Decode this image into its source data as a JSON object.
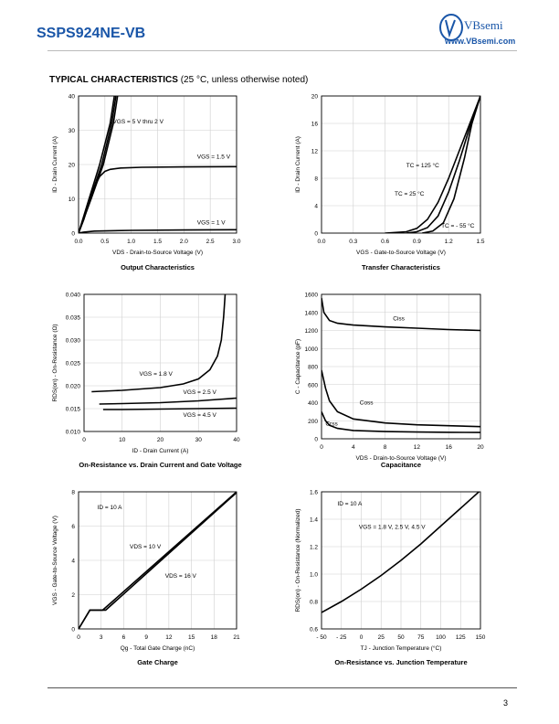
{
  "header": {
    "part_number": "SSPS924NE-VB",
    "brand": "VBsemi",
    "website": "www.VBsemi.com"
  },
  "section": {
    "title": "TYPICAL CHARACTERISTICS",
    "condition": "(25 °C, unless otherwise noted)"
  },
  "page_number": "3",
  "chart_data": [
    {
      "type": "line",
      "caption": "Output Characteristics",
      "xlabel": "VDS - Drain-to-Source Voltage (V)",
      "ylabel": "ID - Drain Current (A)",
      "xlim": [
        0,
        3
      ],
      "ylim": [
        0,
        40
      ],
      "xticks": [
        0,
        0.5,
        1,
        1.5,
        2,
        2.5,
        3
      ],
      "yticks": [
        0,
        10,
        20,
        30,
        40
      ],
      "xtick_labels": [
        "0.0",
        "0.5",
        "1.0",
        "1.5",
        "2.0",
        "2.5",
        "3.0"
      ],
      "ytick_labels": [
        "0",
        "10",
        "20",
        "30",
        "40"
      ],
      "series": [
        {
          "name": "VGS = 5 V thru 2 V",
          "points": [
            [
              0,
              0
            ],
            [
              0.2,
              10
            ],
            [
              0.4,
              20
            ],
            [
              0.6,
              32
            ],
            [
              0.68,
              40
            ]
          ]
        },
        {
          "name": "",
          "points": [
            [
              0,
              0
            ],
            [
              0.22,
              10
            ],
            [
              0.44,
              20
            ],
            [
              0.63,
              32
            ],
            [
              0.71,
              40
            ]
          ]
        },
        {
          "name": "",
          "points": [
            [
              0,
              0
            ],
            [
              0.24,
              10
            ],
            [
              0.47,
              20
            ],
            [
              0.66,
              32
            ],
            [
              0.74,
              40
            ]
          ]
        },
        {
          "name": "VGS = 1.5 V",
          "points": [
            [
              0,
              0
            ],
            [
              0.1,
              4
            ],
            [
              0.2,
              9
            ],
            [
              0.3,
              13.5
            ],
            [
              0.4,
              16.5
            ],
            [
              0.5,
              18
            ],
            [
              0.6,
              18.6
            ],
            [
              0.8,
              19
            ],
            [
              1.2,
              19.2
            ],
            [
              2,
              19.3
            ],
            [
              3,
              19.4
            ]
          ]
        },
        {
          "name": "VGS = 1 V",
          "points": [
            [
              0,
              0
            ],
            [
              0.1,
              0.3
            ],
            [
              0.3,
              0.6
            ],
            [
              1,
              0.8
            ],
            [
              2,
              0.9
            ],
            [
              3,
              1
            ]
          ]
        }
      ],
      "annotations": [
        {
          "text": "VGS = 5 V thru 2 V",
          "x": 0.65,
          "y": 32
        },
        {
          "text": "VGS = 1.5 V",
          "x": 2.25,
          "y": 21.8
        },
        {
          "text": "VGS = 1 V",
          "x": 2.25,
          "y": 2.6
        }
      ]
    },
    {
      "type": "line",
      "caption": "Transfer Characteristics",
      "xlabel": "VGS - Gate-to-Source Voltage (V)",
      "ylabel": "ID - Drain Current (A)",
      "xlim": [
        0,
        1.5
      ],
      "ylim": [
        0,
        20
      ],
      "xticks": [
        0,
        0.3,
        0.6,
        0.9,
        1.2,
        1.5
      ],
      "yticks": [
        0,
        4,
        8,
        12,
        16,
        20
      ],
      "xtick_labels": [
        "0.0",
        "0.3",
        "0.6",
        "0.9",
        "1.2",
        "1.5"
      ],
      "ytick_labels": [
        "0",
        "4",
        "8",
        "12",
        "16",
        "20"
      ],
      "series": [
        {
          "name": "TC = 125 °C",
          "points": [
            [
              0.6,
              0
            ],
            [
              0.8,
              0.2
            ],
            [
              0.9,
              0.7
            ],
            [
              1.0,
              2
            ],
            [
              1.1,
              4.5
            ],
            [
              1.2,
              8
            ],
            [
              1.3,
              12
            ],
            [
              1.4,
              16
            ],
            [
              1.5,
              20
            ]
          ]
        },
        {
          "name": "TC = 25 °C",
          "points": [
            [
              0.8,
              0
            ],
            [
              0.9,
              0.2
            ],
            [
              1.0,
              0.8
            ],
            [
              1.1,
              2.5
            ],
            [
              1.2,
              6
            ],
            [
              1.3,
              10.5
            ],
            [
              1.4,
              15.5
            ],
            [
              1.5,
              20
            ]
          ]
        },
        {
          "name": "TC = - 55 °C",
          "points": [
            [
              0.95,
              0
            ],
            [
              1.05,
              0.3
            ],
            [
              1.15,
              1.5
            ],
            [
              1.25,
              5
            ],
            [
              1.35,
              11
            ],
            [
              1.42,
              16
            ],
            [
              1.5,
              20
            ]
          ]
        }
      ],
      "annotations": [
        {
          "text": "TC = 125 °C",
          "x": 0.8,
          "y": 9.6
        },
        {
          "text": "TC = 25 °C",
          "x": 0.69,
          "y": 5.5
        },
        {
          "text": "TC = - 55 °C",
          "x": 1.13,
          "y": 0.8
        }
      ]
    },
    {
      "type": "line",
      "caption": "On-Resistance vs. Drain Current and Gate Voltage",
      "xlabel": "ID - Drain Current (A)",
      "ylabel": "RDS(on) - On-Resistance (Ω)",
      "xlim": [
        0,
        40
      ],
      "ylim": [
        0.01,
        0.04
      ],
      "xticks": [
        0,
        10,
        20,
        30,
        40
      ],
      "yticks": [
        0.01,
        0.015,
        0.02,
        0.025,
        0.03,
        0.035,
        0.04
      ],
      "xtick_labels": [
        "0",
        "10",
        "20",
        "30",
        "40"
      ],
      "ytick_labels": [
        "0.010",
        "0.015",
        "0.020",
        "0.025",
        "0.030",
        "0.035",
        "0.040"
      ],
      "series": [
        {
          "name": "VGS = 1.8 V",
          "points": [
            [
              2,
              0.0187
            ],
            [
              10,
              0.019
            ],
            [
              20,
              0.0196
            ],
            [
              26,
              0.0204
            ],
            [
              30,
              0.0215
            ],
            [
              33,
              0.0235
            ],
            [
              35,
              0.0265
            ],
            [
              36,
              0.03
            ],
            [
              36.6,
              0.035
            ],
            [
              37,
              0.04
            ]
          ]
        },
        {
          "name": "VGS = 2.5 V",
          "points": [
            [
              4,
              0.016
            ],
            [
              10,
              0.0161
            ],
            [
              20,
              0.0163
            ],
            [
              30,
              0.0167
            ],
            [
              35,
              0.017
            ],
            [
              40,
              0.0173
            ]
          ]
        },
        {
          "name": "VGS = 4.5 V",
          "points": [
            [
              5,
              0.0148
            ],
            [
              10,
              0.0148
            ],
            [
              20,
              0.0149
            ],
            [
              30,
              0.015
            ],
            [
              40,
              0.0151
            ]
          ]
        }
      ],
      "annotations": [
        {
          "text": "VGS = 1.8 V",
          "x": 14.5,
          "y": 0.0222
        },
        {
          "text": "VGS = 2.5 V",
          "x": 26,
          "y": 0.0182
        },
        {
          "text": "VGS = 4.5 V",
          "x": 26,
          "y": 0.0132
        }
      ]
    },
    {
      "type": "line",
      "caption": "Capacitance",
      "xlabel": "VDS - Drain-to-Source Voltage (V)",
      "ylabel": "C - Capacitance (pF)",
      "xlim": [
        0,
        20
      ],
      "ylim": [
        0,
        1600
      ],
      "xticks": [
        0,
        4,
        8,
        12,
        16,
        20
      ],
      "yticks": [
        0,
        200,
        400,
        600,
        800,
        1000,
        1200,
        1400,
        1600
      ],
      "xtick_labels": [
        "0",
        "4",
        "8",
        "12",
        "16",
        "20"
      ],
      "ytick_labels": [
        "0",
        "200",
        "400",
        "600",
        "800",
        "1000",
        "1200",
        "1400",
        "1600"
      ],
      "series": [
        {
          "name": "Ciss",
          "points": [
            [
              0,
              1560
            ],
            [
              0.3,
              1400
            ],
            [
              1,
              1310
            ],
            [
              2,
              1280
            ],
            [
              4,
              1260
            ],
            [
              8,
              1240
            ],
            [
              12,
              1225
            ],
            [
              16,
              1210
            ],
            [
              20,
              1200
            ]
          ]
        },
        {
          "name": "Coss",
          "points": [
            [
              0,
              760
            ],
            [
              0.5,
              560
            ],
            [
              1,
              420
            ],
            [
              2,
              300
            ],
            [
              4,
              220
            ],
            [
              8,
              175
            ],
            [
              12,
              155
            ],
            [
              16,
              145
            ],
            [
              20,
              135
            ]
          ]
        },
        {
          "name": "Crss",
          "points": [
            [
              0,
              300
            ],
            [
              0.5,
              200
            ],
            [
              1,
              150
            ],
            [
              2,
              115
            ],
            [
              4,
              92
            ],
            [
              8,
              80
            ],
            [
              12,
              75
            ],
            [
              16,
              72
            ],
            [
              20,
              70
            ]
          ]
        }
      ],
      "annotations": [
        {
          "text": "Ciss",
          "x": 9,
          "y": 1310
        },
        {
          "text": "Coss",
          "x": 4.8,
          "y": 380
        },
        {
          "text": "Crss",
          "x": 0.5,
          "y": 145
        }
      ]
    },
    {
      "type": "line",
      "caption": "Gate Charge",
      "xlabel": "Qg - Total Gate Charge (nC)",
      "ylabel": "VGS - Gate-to-Source Voltage (V)",
      "xlim": [
        0,
        21
      ],
      "ylim": [
        0,
        8
      ],
      "xticks": [
        0,
        3,
        6,
        9,
        12,
        15,
        18,
        21
      ],
      "yticks": [
        0,
        2,
        4,
        6,
        8
      ],
      "xtick_labels": [
        "0",
        "3",
        "6",
        "9",
        "12",
        "15",
        "18",
        "21"
      ],
      "ytick_labels": [
        "0",
        "2",
        "4",
        "6",
        "8"
      ],
      "series": [
        {
          "name": "VDS = 10 V",
          "points": [
            [
              0,
              0
            ],
            [
              1.5,
              1.1
            ],
            [
              3.2,
              1.1
            ],
            [
              21,
              8
            ]
          ]
        },
        {
          "name": "VDS = 16 V",
          "points": [
            [
              0,
              0
            ],
            [
              1.5,
              1.1
            ],
            [
              3.6,
              1.1
            ],
            [
              21,
              7.95
            ]
          ]
        }
      ],
      "annotations": [
        {
          "text": "ID = 10 A",
          "x": 2.5,
          "y": 7.0
        },
        {
          "text": "VDS = 10 V",
          "x": 6.8,
          "y": 4.7
        },
        {
          "text": "VDS = 16 V",
          "x": 11.5,
          "y": 3.0
        }
      ]
    },
    {
      "type": "line",
      "caption": "On-Resistance vs. Junction Temperature",
      "xlabel": "TJ - Junction Temperature (°C)",
      "ylabel": "RDS(on) - On-Resistance (Normalized)",
      "xlim": [
        -50,
        150
      ],
      "ylim": [
        0.6,
        1.6
      ],
      "xticks": [
        -50,
        -25,
        0,
        25,
        50,
        75,
        100,
        125,
        150
      ],
      "yticks": [
        0.6,
        0.8,
        1.0,
        1.2,
        1.4,
        1.6
      ],
      "xtick_labels": [
        "- 50",
        "- 25",
        "0",
        "25",
        "50",
        "75",
        "100",
        "125",
        "150"
      ],
      "ytick_labels": [
        "0.6",
        "0.8",
        "1.0",
        "1.2",
        "1.4",
        "1.6"
      ],
      "series": [
        {
          "name": "VGS = 1.8 V, 2.5 V, 4.5 V",
          "points": [
            [
              -50,
              0.72
            ],
            [
              -25,
              0.8
            ],
            [
              0,
              0.89
            ],
            [
              25,
              0.99
            ],
            [
              50,
              1.1
            ],
            [
              75,
              1.22
            ],
            [
              100,
              1.35
            ],
            [
              125,
              1.48
            ],
            [
              150,
              1.61
            ]
          ]
        }
      ],
      "annotations": [
        {
          "text": "ID = 10 A",
          "x": -30,
          "y": 1.5
        },
        {
          "text": "VGS = 1.8 V, 2.5 V, 4.5 V",
          "x": -3,
          "y": 1.33
        }
      ]
    }
  ]
}
